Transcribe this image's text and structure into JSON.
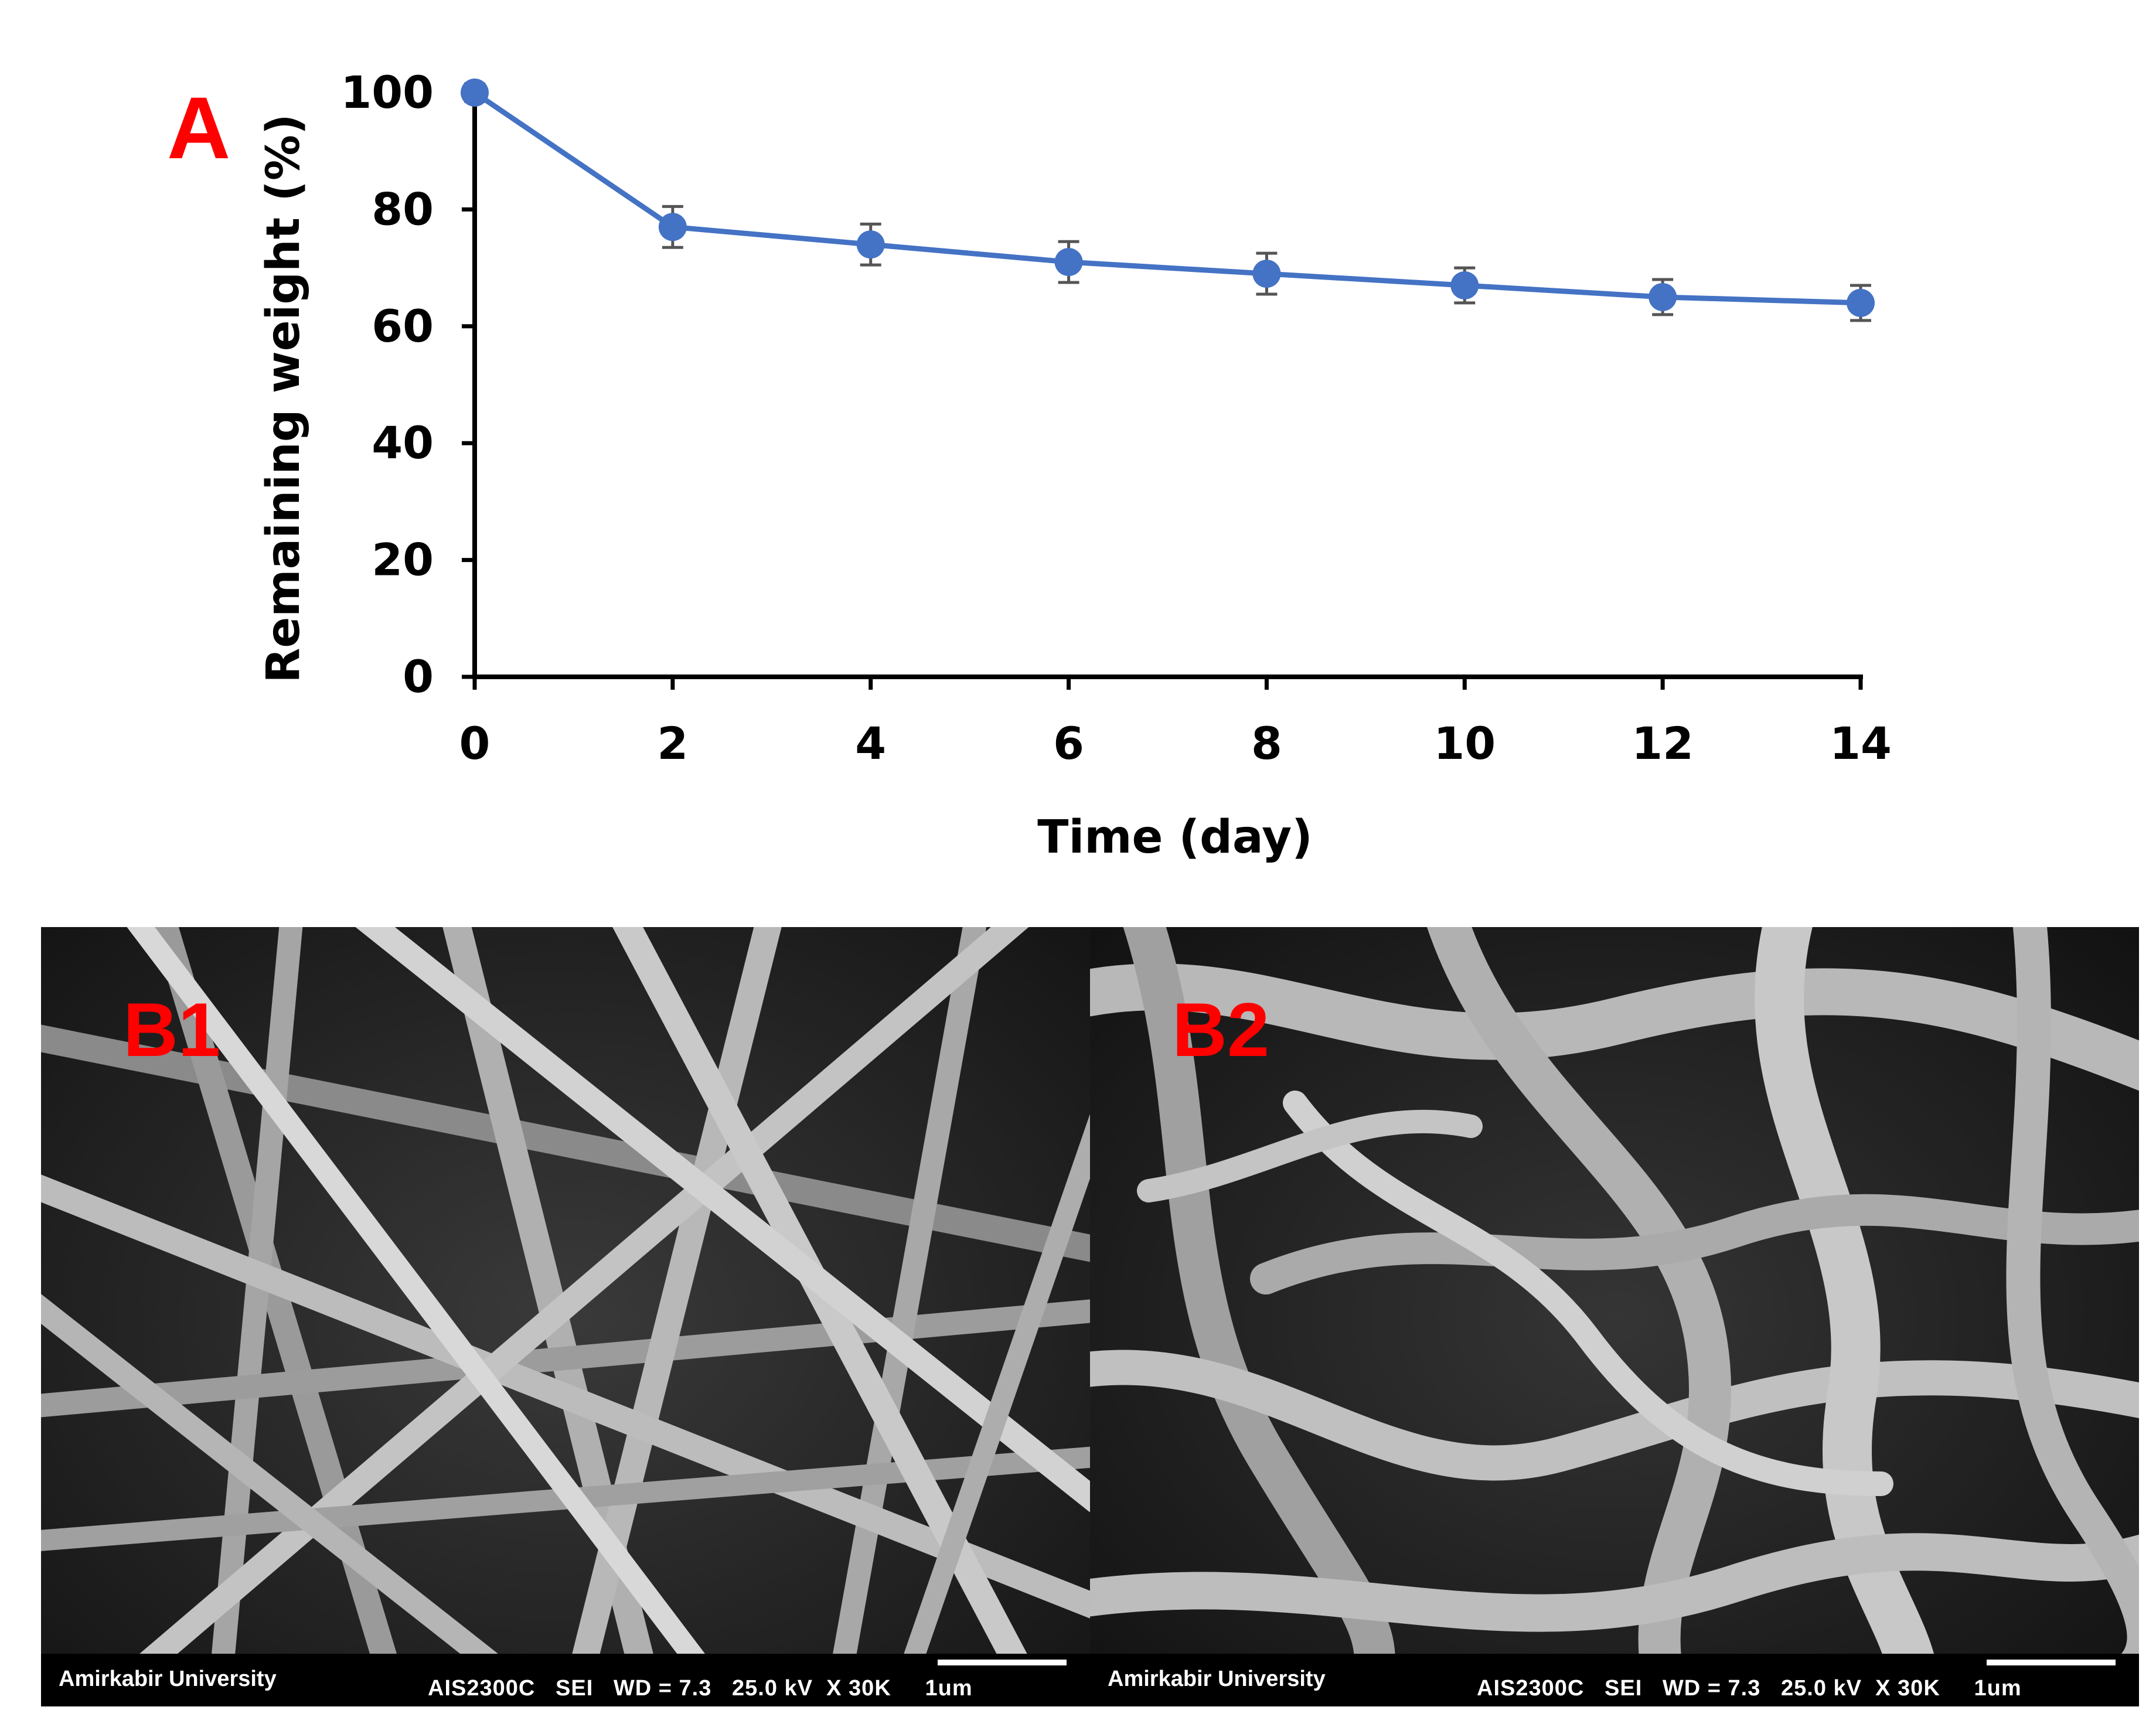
{
  "panel_a_label": "A",
  "chart_data": {
    "type": "line",
    "xlabel": "Time (day)",
    "ylabel": "Remaining weight (%)",
    "x_ticks": [
      0,
      2,
      4,
      6,
      8,
      10,
      12,
      14
    ],
    "y_ticks": [
      0,
      20,
      40,
      60,
      80,
      100
    ],
    "xlim": [
      0,
      14
    ],
    "ylim": [
      0,
      100
    ],
    "grid": false,
    "series": [
      {
        "x": [
          0,
          2,
          4,
          6,
          8,
          10,
          12,
          14
        ],
        "values": [
          100,
          77,
          74,
          71,
          69,
          67,
          65,
          64
        ],
        "error": [
          1.5,
          3.5,
          3.5,
          3.5,
          3.5,
          3,
          3,
          3
        ],
        "color": "#4472c4"
      }
    ]
  },
  "sem_images": [
    {
      "label": "B1",
      "org": "Amirkabir University",
      "meta": "AIS2300C   SEI   WD = 7.3   25.0 kV  X 30K     1um"
    },
    {
      "label": "B2",
      "org": "Amirkabir University",
      "meta": "AIS2300C   SEI   WD = 7.3   25.0 kV  X 30K     1um"
    }
  ]
}
